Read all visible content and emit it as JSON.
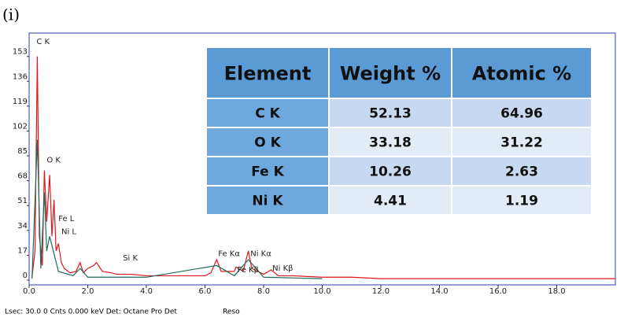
{
  "panel_label": "(i)",
  "chart_data": {
    "type": "line",
    "xlim": [
      0,
      20
    ],
    "ylim": [
      0,
      169
    ],
    "xticks": [
      {
        "value": 0,
        "label": "0.0"
      },
      {
        "value": 2,
        "label": "2.0"
      },
      {
        "value": 4,
        "label": "4.0"
      },
      {
        "value": 6,
        "label": "6.0"
      },
      {
        "value": 8,
        "label": "8.0"
      },
      {
        "value": 10,
        "label": "10.0"
      },
      {
        "value": 12,
        "label": "12.0"
      },
      {
        "value": 14,
        "label": "14.0"
      },
      {
        "value": 16,
        "label": "16.0"
      },
      {
        "value": 18,
        "label": "18.0"
      }
    ],
    "yticks": [
      0,
      17,
      34,
      51,
      68,
      85,
      102,
      119,
      136,
      153
    ],
    "series": [
      {
        "color": "#e0161b",
        "x": [
          0.1,
          0.2,
          0.28,
          0.35,
          0.45,
          0.52,
          0.6,
          0.7,
          0.78,
          0.85,
          0.92,
          1.0,
          1.1,
          1.2,
          1.4,
          1.6,
          1.74,
          1.85,
          2.0,
          2.2,
          2.3,
          2.5,
          2.8,
          3.0,
          3.5,
          4.0,
          4.5,
          5.0,
          5.5,
          6.0,
          6.2,
          6.4,
          6.55,
          7.0,
          7.06,
          7.3,
          7.48,
          7.6,
          8.0,
          8.26,
          8.5,
          9.0,
          10,
          11,
          12,
          14,
          16,
          18,
          20
        ],
        "values": [
          2,
          20,
          153,
          30,
          10,
          75,
          40,
          72,
          30,
          55,
          20,
          25,
          12,
          8,
          5,
          6,
          12,
          5,
          8,
          10,
          12,
          6,
          5,
          4,
          4,
          3,
          3,
          3,
          3,
          3,
          5,
          14,
          6,
          6,
          9,
          6,
          20,
          8,
          4,
          7,
          3,
          3,
          2,
          2,
          1,
          1,
          1,
          1,
          1
        ]
      },
      {
        "color": "#1f6b5e",
        "x": [
          0.1,
          0.28,
          0.4,
          0.52,
          0.6,
          0.7,
          0.85,
          1.0,
          1.5,
          1.74,
          2.0,
          4.0,
          6.4,
          7.0,
          7.48,
          8.0,
          10
        ],
        "values": [
          1,
          96,
          8,
          60,
          20,
          30,
          18,
          6,
          3,
          8,
          2,
          2,
          10,
          3,
          14,
          2,
          1
        ]
      }
    ],
    "annotations": [
      {
        "text": "C  K",
        "x": 0.25,
        "y": 163
      },
      {
        "text": "O  K",
        "x": 0.6,
        "y": 82
      },
      {
        "text": "Fe L",
        "x": 1.0,
        "y": 42
      },
      {
        "text": "Ni L",
        "x": 1.1,
        "y": 33
      },
      {
        "text": "Si K",
        "x": 3.2,
        "y": 15
      },
      {
        "text": "Fe Kα",
        "x": 6.45,
        "y": 18
      },
      {
        "text": "Ni Kα",
        "x": 7.55,
        "y": 18
      },
      {
        "text": "Fe Kβ",
        "x": 7.1,
        "y": 7
      },
      {
        "text": "Ni Kβ",
        "x": 8.3,
        "y": 8
      }
    ]
  },
  "table": {
    "header": [
      "Element",
      "Weight %",
      "Atomic %"
    ],
    "rows": [
      [
        "C K",
        "52.13",
        "64.96"
      ],
      [
        "O K",
        "33.18",
        "31.22"
      ],
      [
        "Fe K",
        "10.26",
        "2.63"
      ],
      [
        "Ni K",
        "4.41",
        "1.19"
      ]
    ]
  },
  "footer": {
    "status": "Lsec: 30.0 0 Cnts  0.000 keV Det: Octane Pro Det",
    "reso": "Reso"
  }
}
